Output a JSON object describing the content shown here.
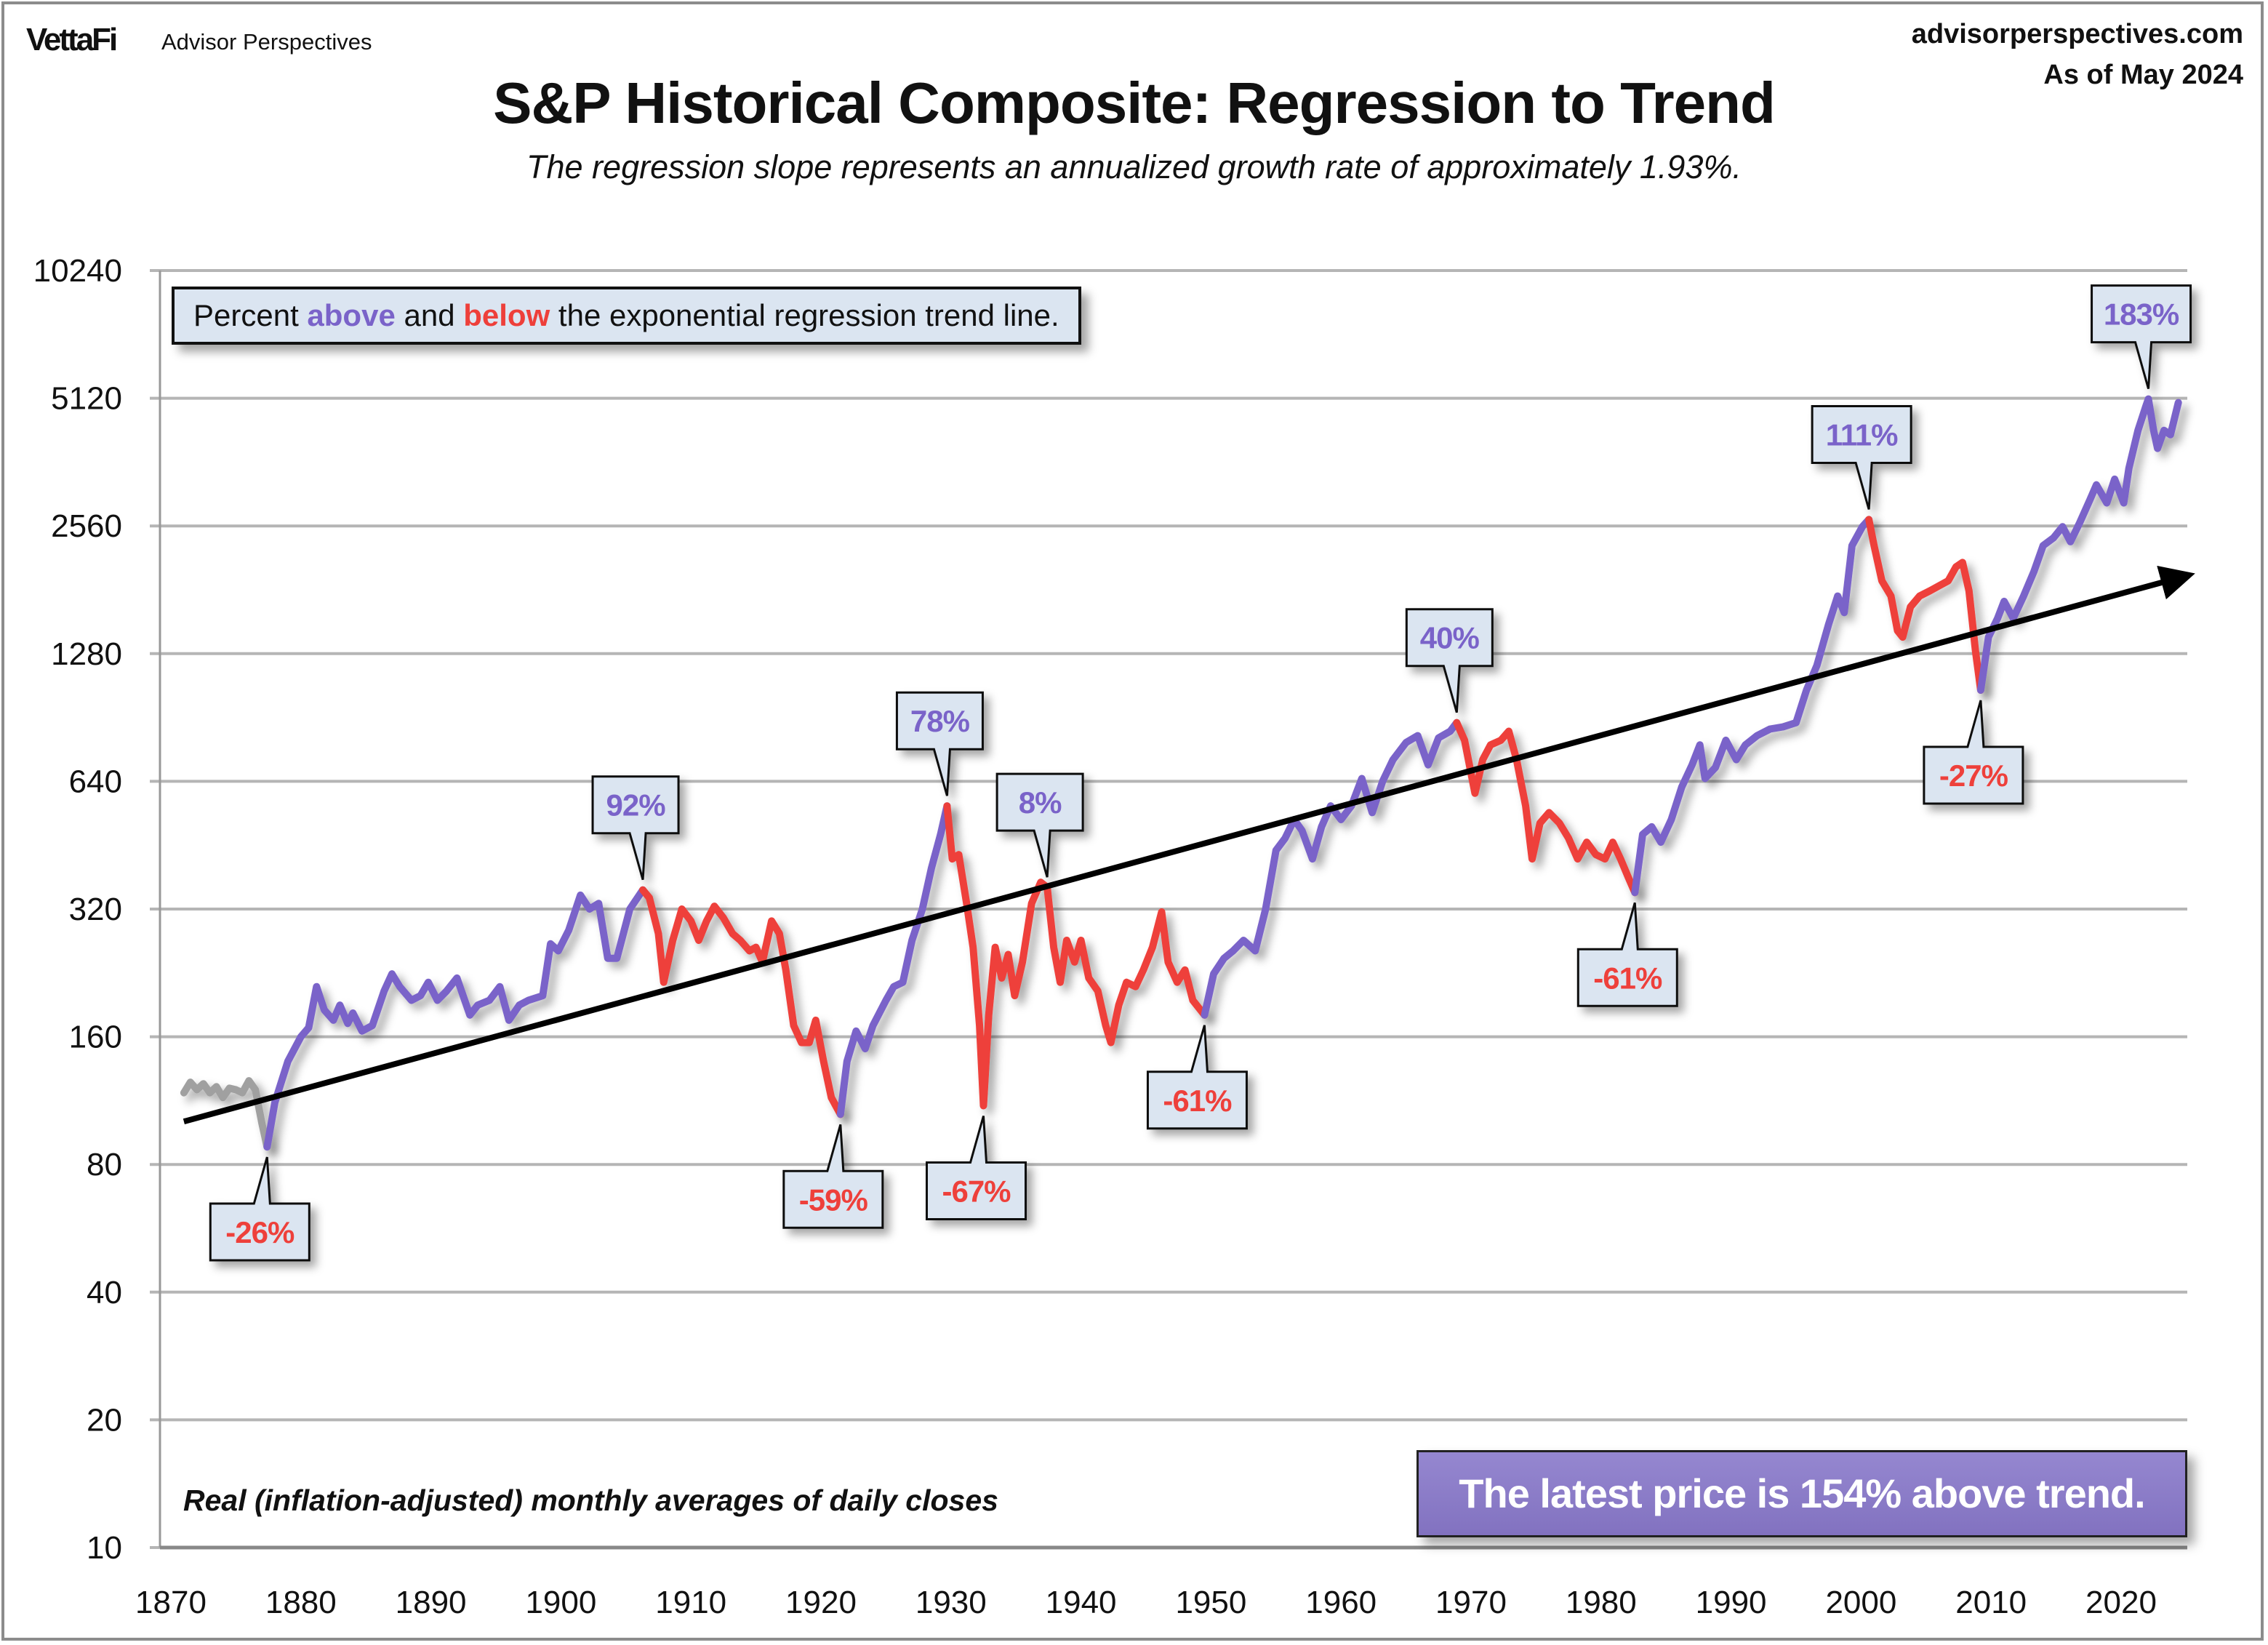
{
  "header": {
    "logo": "VettaFi",
    "brand": "Advisor Perspectives",
    "site": "advisorperspectives.com",
    "as_of": "As of May 2024"
  },
  "chart_data": {
    "type": "line",
    "title": "S&P Historical Composite: Regression to Trend",
    "subtitle": "The regression slope represents an annualized growth rate of approximately 1.93%.",
    "legend": {
      "prefix": "Percent ",
      "above": "above",
      "middle": " and ",
      "below": "below",
      "suffix": " the exponential regression trend line."
    },
    "footnote": "Real (inflation-adjusted) monthly averages of daily closes",
    "latest_note": "The latest price is 154% above trend.",
    "y_scale": "log2",
    "ylim": [
      10,
      10240
    ],
    "y_ticks": [
      10,
      20,
      40,
      80,
      160,
      320,
      640,
      1280,
      2560,
      5120,
      10240
    ],
    "xlim": [
      1869,
      2025
    ],
    "x_ticks": [
      1870,
      1880,
      1890,
      1900,
      1910,
      1920,
      1930,
      1940,
      1950,
      1960,
      1970,
      1980,
      1990,
      2000,
      2010,
      2020
    ],
    "grid": "horizontal",
    "colors": {
      "above": "#7a63c9",
      "below": "#ee3f3a",
      "early": "#a0a0a0",
      "trend": "#000000",
      "callout_bg": "#dbe5f1"
    },
    "trend": {
      "start": [
        1871,
        101
      ],
      "end": [
        2024.4,
        1930
      ],
      "annual_growth_pct": 1.93
    },
    "series": [
      [
        1871,
        118
      ],
      [
        1871.5,
        125
      ],
      [
        1872,
        120
      ],
      [
        1872.5,
        124
      ],
      [
        1873,
        118
      ],
      [
        1873.5,
        122
      ],
      [
        1874,
        115
      ],
      [
        1874.5,
        121
      ],
      [
        1875,
        120
      ],
      [
        1875.5,
        118
      ],
      [
        1876,
        126
      ],
      [
        1876.5,
        120
      ],
      [
        1877,
        100
      ],
      [
        1877.4,
        88
      ],
      [
        1878,
        112
      ],
      [
        1879,
        140
      ],
      [
        1880,
        160
      ],
      [
        1880.6,
        168
      ],
      [
        1881.2,
        210
      ],
      [
        1881.8,
        185
      ],
      [
        1882.5,
        175
      ],
      [
        1883,
        190
      ],
      [
        1883.6,
        172
      ],
      [
        1884,
        182
      ],
      [
        1884.7,
        165
      ],
      [
        1885.5,
        170
      ],
      [
        1886.4,
        205
      ],
      [
        1887,
        225
      ],
      [
        1887.6,
        210
      ],
      [
        1888.5,
        195
      ],
      [
        1889.2,
        200
      ],
      [
        1889.8,
        215
      ],
      [
        1890.5,
        195
      ],
      [
        1891.2,
        205
      ],
      [
        1892,
        220
      ],
      [
        1893,
        180
      ],
      [
        1893.6,
        190
      ],
      [
        1894.5,
        195
      ],
      [
        1895.3,
        210
      ],
      [
        1896,
        175
      ],
      [
        1896.8,
        190
      ],
      [
        1897.5,
        195
      ],
      [
        1898.6,
        200
      ],
      [
        1899.2,
        265
      ],
      [
        1899.8,
        255
      ],
      [
        1900.6,
        285
      ],
      [
        1901.5,
        345
      ],
      [
        1902.2,
        320
      ],
      [
        1902.9,
        330
      ],
      [
        1903.6,
        245
      ],
      [
        1904.3,
        245
      ],
      [
        1905.3,
        320
      ],
      [
        1906.3,
        355
      ],
      [
        1906.8,
        340
      ],
      [
        1907.5,
        280
      ],
      [
        1907.9,
        215
      ],
      [
        1908.6,
        270
      ],
      [
        1909.3,
        320
      ],
      [
        1910,
        300
      ],
      [
        1910.6,
        270
      ],
      [
        1911.2,
        300
      ],
      [
        1911.8,
        325
      ],
      [
        1912.5,
        305
      ],
      [
        1913.2,
        280
      ],
      [
        1913.8,
        270
      ],
      [
        1914.5,
        255
      ],
      [
        1915,
        260
      ],
      [
        1915.5,
        240
      ],
      [
        1916.2,
        300
      ],
      [
        1916.8,
        280
      ],
      [
        1917.3,
        230
      ],
      [
        1917.9,
        170
      ],
      [
        1918.5,
        155
      ],
      [
        1919.1,
        155
      ],
      [
        1919.6,
        175
      ],
      [
        1920.2,
        140
      ],
      [
        1920.8,
        115
      ],
      [
        1921.5,
        105
      ],
      [
        1922,
        140
      ],
      [
        1922.7,
        165
      ],
      [
        1923.4,
        150
      ],
      [
        1924,
        170
      ],
      [
        1925,
        195
      ],
      [
        1925.6,
        210
      ],
      [
        1926.3,
        215
      ],
      [
        1927,
        270
      ],
      [
        1927.8,
        320
      ],
      [
        1928.5,
        400
      ],
      [
        1929.2,
        480
      ],
      [
        1929.7,
        560
      ],
      [
        1930.1,
        420
      ],
      [
        1930.6,
        430
      ],
      [
        1931.2,
        330
      ],
      [
        1931.7,
        260
      ],
      [
        1932.2,
        170
      ],
      [
        1932.5,
        110
      ],
      [
        1932.9,
        180
      ],
      [
        1933.4,
        260
      ],
      [
        1933.9,
        220
      ],
      [
        1934.4,
        250
      ],
      [
        1934.9,
        200
      ],
      [
        1935.5,
        240
      ],
      [
        1936.2,
        330
      ],
      [
        1936.9,
        370
      ],
      [
        1937.4,
        360
      ],
      [
        1937.9,
        260
      ],
      [
        1938.4,
        215
      ],
      [
        1938.9,
        270
      ],
      [
        1939.5,
        240
      ],
      [
        1940,
        270
      ],
      [
        1940.6,
        220
      ],
      [
        1941.3,
        205
      ],
      [
        1941.9,
        170
      ],
      [
        1942.3,
        155
      ],
      [
        1942.9,
        190
      ],
      [
        1943.5,
        215
      ],
      [
        1944.2,
        210
      ],
      [
        1944.8,
        230
      ],
      [
        1945.5,
        260
      ],
      [
        1946.2,
        315
      ],
      [
        1946.7,
        240
      ],
      [
        1947.4,
        215
      ],
      [
        1948,
        230
      ],
      [
        1948.6,
        195
      ],
      [
        1949.5,
        180
      ],
      [
        1950.2,
        225
      ],
      [
        1951,
        245
      ],
      [
        1951.7,
        255
      ],
      [
        1952.5,
        270
      ],
      [
        1953.4,
        255
      ],
      [
        1954.2,
        320
      ],
      [
        1955,
        440
      ],
      [
        1955.7,
        470
      ],
      [
        1956.4,
        520
      ],
      [
        1957,
        490
      ],
      [
        1957.8,
        420
      ],
      [
        1958.5,
        500
      ],
      [
        1959.2,
        560
      ],
      [
        1960,
        520
      ],
      [
        1960.8,
        560
      ],
      [
        1961.6,
        650
      ],
      [
        1962.4,
        540
      ],
      [
        1963.2,
        640
      ],
      [
        1964,
        720
      ],
      [
        1965,
        790
      ],
      [
        1965.9,
        820
      ],
      [
        1966.7,
        700
      ],
      [
        1967.5,
        810
      ],
      [
        1968.4,
        840
      ],
      [
        1968.9,
        880
      ],
      [
        1969.5,
        800
      ],
      [
        1970.3,
        600
      ],
      [
        1970.9,
        720
      ],
      [
        1971.5,
        780
      ],
      [
        1972.3,
        800
      ],
      [
        1972.9,
        840
      ],
      [
        1973.5,
        720
      ],
      [
        1974.2,
        560
      ],
      [
        1974.7,
        420
      ],
      [
        1975.3,
        510
      ],
      [
        1976,
        540
      ],
      [
        1976.8,
        510
      ],
      [
        1977.5,
        470
      ],
      [
        1978.2,
        420
      ],
      [
        1978.9,
        460
      ],
      [
        1979.6,
        430
      ],
      [
        1980.3,
        420
      ],
      [
        1980.9,
        460
      ],
      [
        1981.5,
        420
      ],
      [
        1982.1,
        380
      ],
      [
        1982.6,
        350
      ],
      [
        1983.2,
        480
      ],
      [
        1983.9,
        500
      ],
      [
        1984.6,
        460
      ],
      [
        1985.4,
        520
      ],
      [
        1986.2,
        620
      ],
      [
        1987,
        700
      ],
      [
        1987.6,
        780
      ],
      [
        1988,
        650
      ],
      [
        1988.8,
        690
      ],
      [
        1989.6,
        800
      ],
      [
        1990.4,
        720
      ],
      [
        1991.1,
        780
      ],
      [
        1992,
        820
      ],
      [
        1993,
        850
      ],
      [
        1994,
        860
      ],
      [
        1995,
        880
      ],
      [
        1995.8,
        1050
      ],
      [
        1996.6,
        1200
      ],
      [
        1997.5,
        1500
      ],
      [
        1998.2,
        1750
      ],
      [
        1998.7,
        1600
      ],
      [
        1999.3,
        2300
      ],
      [
        2000.1,
        2550
      ],
      [
        2000.6,
        2650
      ],
      [
        2001,
        2300
      ],
      [
        2001.6,
        1900
      ],
      [
        2002.3,
        1750
      ],
      [
        2002.8,
        1450
      ],
      [
        2003.2,
        1400
      ],
      [
        2003.8,
        1650
      ],
      [
        2004.5,
        1750
      ],
      [
        2005.3,
        1800
      ],
      [
        2006,
        1850
      ],
      [
        2006.7,
        1900
      ],
      [
        2007.3,
        2050
      ],
      [
        2007.8,
        2100
      ],
      [
        2008.3,
        1800
      ],
      [
        2008.8,
        1300
      ],
      [
        2009.2,
        1050
      ],
      [
        2009.8,
        1400
      ],
      [
        2010.5,
        1550
      ],
      [
        2011,
        1700
      ],
      [
        2011.7,
        1550
      ],
      [
        2012.5,
        1750
      ],
      [
        2013.3,
        2000
      ],
      [
        2014,
        2300
      ],
      [
        2014.8,
        2400
      ],
      [
        2015.5,
        2550
      ],
      [
        2016.1,
        2350
      ],
      [
        2016.8,
        2600
      ],
      [
        2017.6,
        2950
      ],
      [
        2018.1,
        3200
      ],
      [
        2018.9,
        2900
      ],
      [
        2019.5,
        3300
      ],
      [
        2020.2,
        2900
      ],
      [
        2020.6,
        3500
      ],
      [
        2021.3,
        4300
      ],
      [
        2021.9,
        4900
      ],
      [
        2022.1,
        5100
      ],
      [
        2022.5,
        4300
      ],
      [
        2022.8,
        3900
      ],
      [
        2023.3,
        4300
      ],
      [
        2023.8,
        4200
      ],
      [
        2024.4,
        5000
      ]
    ],
    "phases": [
      {
        "from": 1871,
        "to": 1877.4,
        "phase": "early"
      },
      {
        "from": 1877.4,
        "to": 1906.3,
        "phase": "above"
      },
      {
        "from": 1906.3,
        "to": 1921.5,
        "phase": "below"
      },
      {
        "from": 1921.5,
        "to": 1929.7,
        "phase": "above"
      },
      {
        "from": 1929.7,
        "to": 1949.5,
        "phase": "below"
      },
      {
        "from": 1949.5,
        "to": 1968.9,
        "phase": "above"
      },
      {
        "from": 1968.9,
        "to": 1982.6,
        "phase": "below"
      },
      {
        "from": 1982.6,
        "to": 2000.6,
        "phase": "above"
      },
      {
        "from": 2000.6,
        "to": 2009.2,
        "phase": "below"
      },
      {
        "from": 2009.2,
        "to": 2024.4,
        "phase": "above"
      }
    ],
    "annotations": [
      {
        "label": "-26%",
        "year": 1877.4,
        "value": 88,
        "side": "below",
        "phase": "below"
      },
      {
        "label": "92%",
        "year": 1906.3,
        "value": 355,
        "side": "above",
        "phase": "above"
      },
      {
        "label": "-59%",
        "year": 1921.5,
        "value": 105,
        "side": "below",
        "phase": "below"
      },
      {
        "label": "78%",
        "year": 1929.7,
        "value": 560,
        "side": "above",
        "phase": "above"
      },
      {
        "label": "-67%",
        "year": 1932.5,
        "value": 110,
        "side": "below",
        "phase": "below"
      },
      {
        "label": "8%",
        "year": 1937.4,
        "value": 360,
        "side": "above",
        "phase": "above"
      },
      {
        "label": "-61%",
        "year": 1949.5,
        "value": 180,
        "side": "below",
        "phase": "below"
      },
      {
        "label": "40%",
        "year": 1968.9,
        "value": 880,
        "side": "above",
        "phase": "above"
      },
      {
        "label": "-61%",
        "year": 1982.6,
        "value": 350,
        "side": "below",
        "phase": "below"
      },
      {
        "label": "111%",
        "year": 2000.6,
        "value": 2650,
        "side": "above",
        "phase": "above"
      },
      {
        "label": "-27%",
        "year": 2009.2,
        "value": 1050,
        "side": "below",
        "phase": "below"
      },
      {
        "label": "183%",
        "year": 2022.1,
        "value": 5100,
        "side": "above",
        "phase": "above"
      }
    ]
  }
}
